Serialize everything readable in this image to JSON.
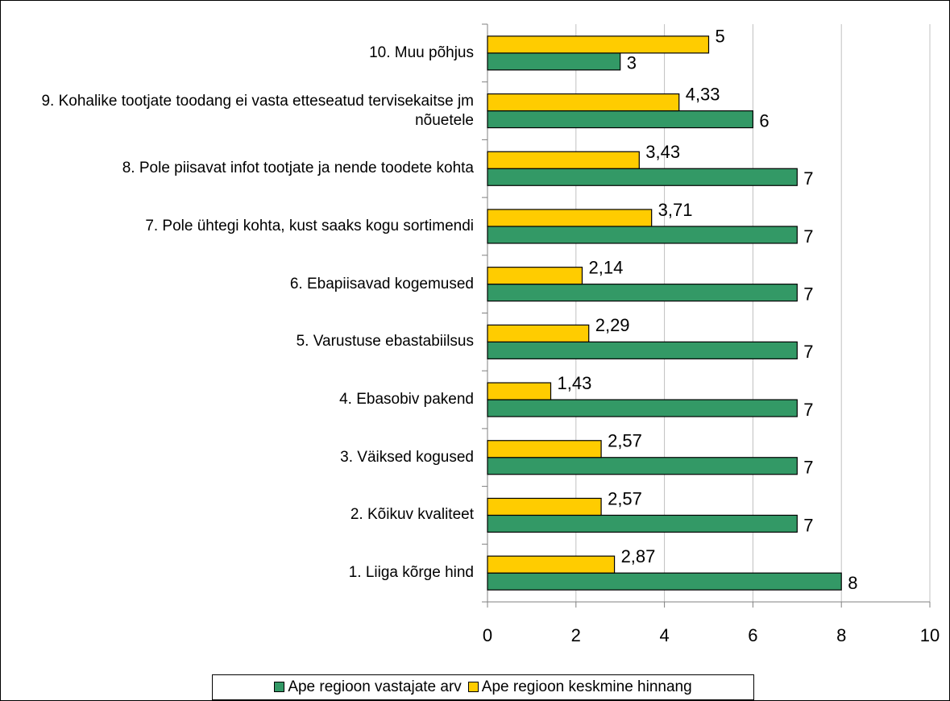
{
  "chart_data": {
    "type": "bar",
    "orientation": "horizontal",
    "categories": [
      "1. Liiga kõrge hind",
      "2. Kõikuv kvaliteet",
      "3. Väiksed kogused",
      "4. Ebasobiv pakend",
      "5. Varustuse ebastabiilsus",
      "6. Ebapiisavad kogemused",
      "7. Pole ühtegi kohta, kust saaks kogu sortimendi",
      "8. Pole piisavat infot tootjate ja nende toodete kohta",
      "9. Kohalike tootjate toodang ei vasta etteseatud tervisekaitse jm nõuetele",
      "10. Muu põhjus"
    ],
    "series": [
      {
        "name": "Ape regioon vastajate arv",
        "color": "#339966",
        "values": [
          8,
          7,
          7,
          7,
          7,
          7,
          7,
          7,
          6,
          3
        ],
        "value_labels": [
          "8",
          "7",
          "7",
          "7",
          "7",
          "7",
          "7",
          "7",
          "6",
          "3"
        ]
      },
      {
        "name": "Ape regioon keskmine hinnang",
        "color": "#ffcc00",
        "values": [
          2.87,
          2.57,
          2.57,
          1.43,
          2.29,
          2.14,
          3.71,
          3.43,
          4.33,
          5
        ],
        "value_labels": [
          "2,87",
          "2,57",
          "2,57",
          "1,43",
          "2,29",
          "2,14",
          "3,71",
          "3,43",
          "4,33",
          "5"
        ]
      }
    ],
    "xlim": [
      0,
      10
    ],
    "xticks": [
      0,
      2,
      4,
      6,
      8,
      10
    ],
    "grid": true,
    "legend": "bottom"
  }
}
